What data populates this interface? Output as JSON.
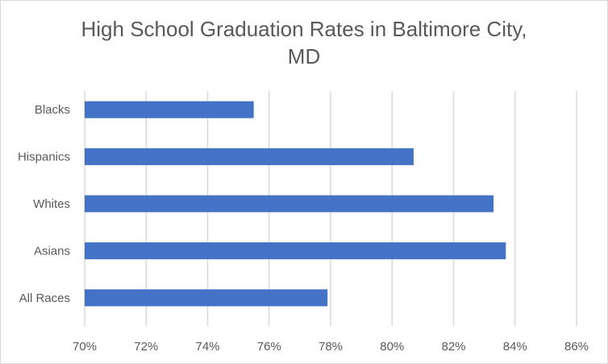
{
  "chart_data": {
    "type": "bar",
    "orientation": "horizontal",
    "title": "High School Graduation Rates in Baltimore City, MD",
    "title_lines": [
      "High School Graduation Rates in Baltimore City,",
      "MD"
    ],
    "categories": [
      "Blacks",
      "Hispanics",
      "Whites",
      "Asians",
      "All Races"
    ],
    "values": [
      75.5,
      80.7,
      83.3,
      83.7,
      77.9
    ],
    "value_unit": "%",
    "xlim": [
      70,
      86
    ],
    "x_ticks": [
      70,
      72,
      74,
      76,
      78,
      80,
      82,
      84,
      86
    ],
    "x_tick_labels": [
      "70%",
      "72%",
      "74%",
      "76%",
      "78%",
      "80%",
      "82%",
      "84%",
      "86%"
    ],
    "xlabel": "",
    "ylabel": "",
    "grid": "vertical",
    "legend": "none",
    "colors": {
      "bar": "#4472c4",
      "grid": "#d9d9d9",
      "text": "#595959"
    }
  }
}
